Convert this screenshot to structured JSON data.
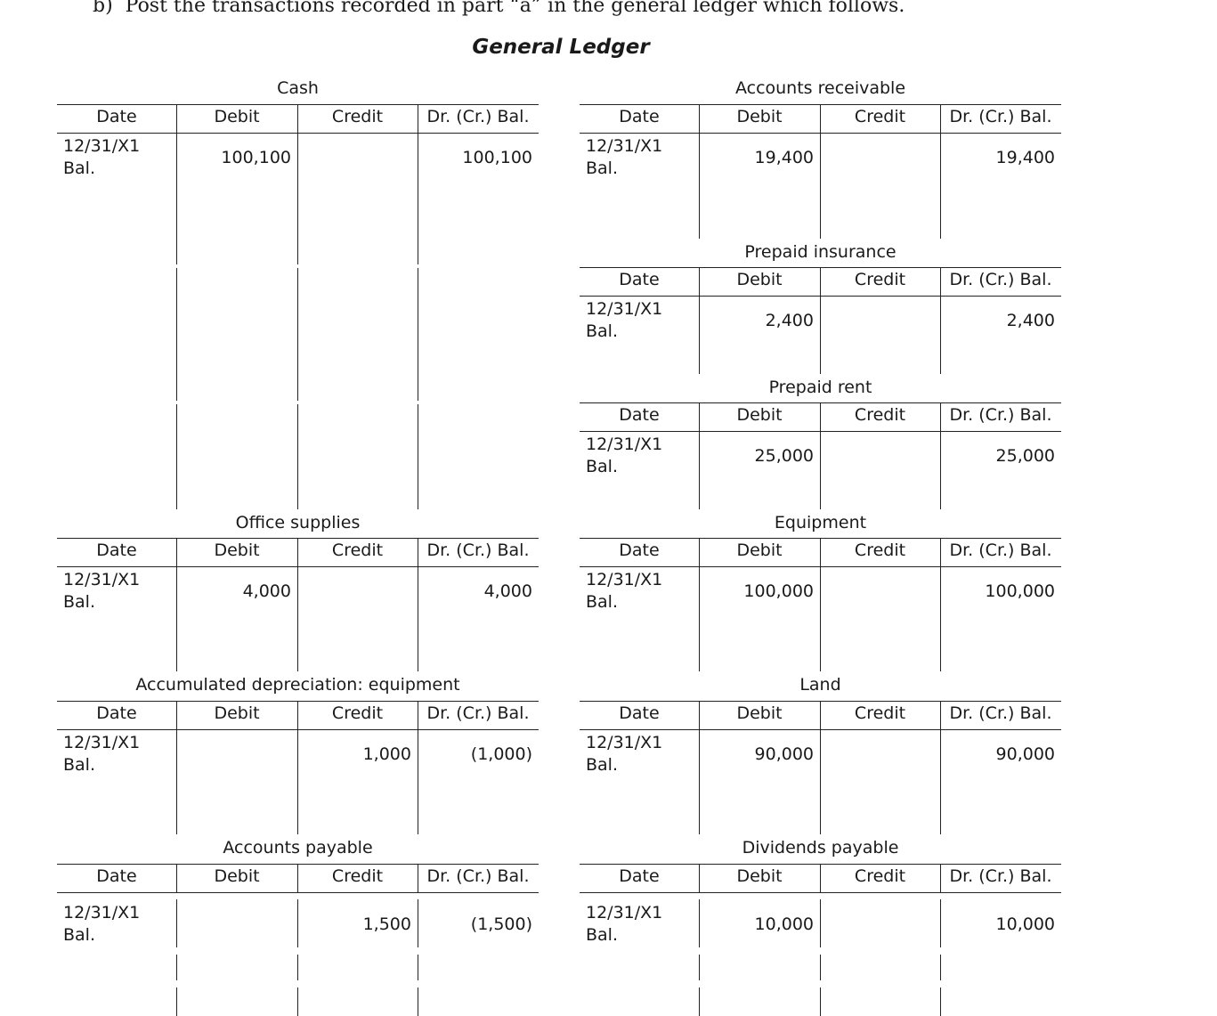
{
  "instruction": "b)  Post the transactions recorded in part “a” in the general ledger which follows.",
  "heading": "General Ledger",
  "columns": [
    "Date",
    "Debit",
    "Credit",
    "Dr. (Cr.) Bal."
  ],
  "entry_date": "12/31/X1",
  "entry_label": "Bal.",
  "accounts": [
    {
      "name": "Cash",
      "debit": "100,100",
      "credit": "",
      "balance": "100,100"
    },
    {
      "name": "Accounts receivable",
      "debit": "19,400",
      "credit": "",
      "balance": "19,400"
    },
    {
      "name": "Prepaid insurance",
      "debit": "2,400",
      "credit": "",
      "balance": "2,400"
    },
    {
      "name": "Prepaid rent",
      "debit": "25,000",
      "credit": "",
      "balance": "25,000"
    },
    {
      "name": "Office supplies",
      "debit": "4,000",
      "credit": "",
      "balance": "4,000"
    },
    {
      "name": "Equipment",
      "debit": "100,000",
      "credit": "",
      "balance": "100,000"
    },
    {
      "name": "Accumulated depreciation: equipment",
      "debit": "",
      "credit": "1,000",
      "balance": "(1,000)"
    },
    {
      "name": "Land",
      "debit": "90,000",
      "credit": "",
      "balance": "90,000"
    },
    {
      "name": "Accounts payable",
      "debit": "",
      "credit": "1,500",
      "balance": "(1,500)"
    },
    {
      "name": "Dividends payable",
      "debit": "10,000",
      "credit": "",
      "balance": "10,000"
    }
  ]
}
